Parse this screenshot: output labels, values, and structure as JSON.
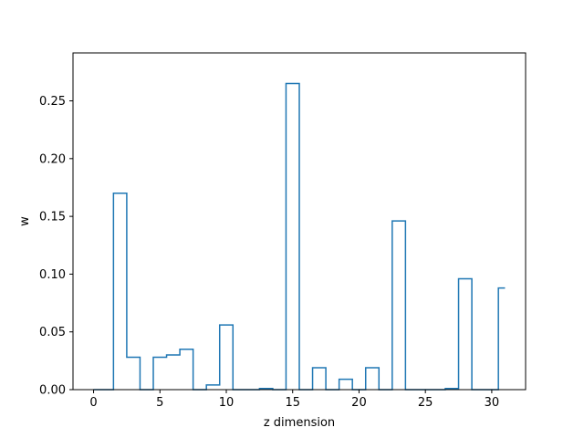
{
  "chart_data": {
    "type": "line",
    "drawstyle": "steps-mid",
    "title": "",
    "xlabel": "z dimension",
    "ylabel": "w",
    "xlim": [
      -1.55,
      32.55
    ],
    "ylim": [
      0,
      0.2915
    ],
    "xticks": [
      0,
      5,
      10,
      15,
      20,
      25,
      30
    ],
    "xtick_labels": [
      "0",
      "5",
      "10",
      "15",
      "20",
      "25",
      "30"
    ],
    "yticks": [
      0.0,
      0.05,
      0.1,
      0.15,
      0.2,
      0.25
    ],
    "ytick_labels": [
      "0.00",
      "0.05",
      "0.10",
      "0.15",
      "0.20",
      "0.25"
    ],
    "grid": false,
    "legend": "none",
    "series_color": "#1f77b4",
    "x": [
      0,
      1,
      2,
      3,
      4,
      5,
      6,
      7,
      8,
      9,
      10,
      11,
      12,
      13,
      14,
      15,
      16,
      17,
      18,
      19,
      20,
      21,
      22,
      23,
      24,
      25,
      26,
      27,
      28,
      29,
      30,
      31
    ],
    "values": [
      0,
      0,
      0.17,
      0.028,
      0,
      0.028,
      0.03,
      0.035,
      0,
      0.004,
      0.056,
      0,
      0,
      0.001,
      0,
      0.265,
      0,
      0.019,
      0,
      0.009,
      0,
      0.019,
      0,
      0.146,
      0,
      0,
      0,
      0.001,
      0.096,
      0,
      0,
      0.088
    ]
  }
}
